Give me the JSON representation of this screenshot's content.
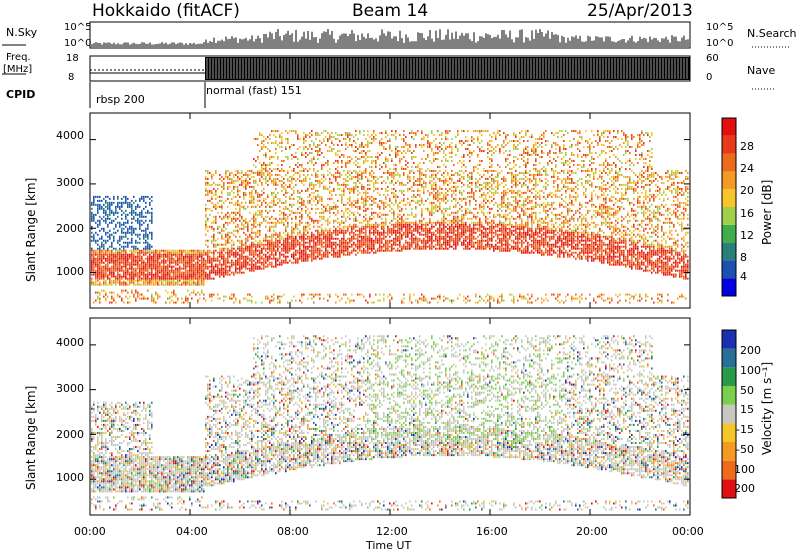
{
  "header": {
    "site": "Hokkaido (fitACF)",
    "beam": "Beam 14",
    "date": "25/Apr/2013"
  },
  "top_panel": {
    "left_label": "N.Sky",
    "right_label": "N.Search",
    "left_ticks": [
      "10^5",
      "10^0"
    ],
    "right_ticks": [
      "10^5",
      "10^0"
    ]
  },
  "freq_panel": {
    "left_label_1": "Freq.",
    "left_label_2": "[MHz]",
    "right_label": "Nave",
    "left_ticks": [
      "18",
      "8"
    ],
    "right_ticks": [
      "60",
      "0"
    ]
  },
  "cpid": {
    "label": "CPID",
    "segments": [
      {
        "name": "rbsp 200",
        "start_hour": 0.0
      },
      {
        "name": "normal (fast) 151",
        "start_hour": 4.6
      }
    ]
  },
  "chart_data": [
    {
      "type": "heatmap",
      "title": "",
      "xlabel": "Time UT",
      "ylabel": "Slant Range [km]",
      "xlim": [
        0,
        24
      ],
      "ylim": [
        200,
        4600
      ],
      "y_ticks": [
        "1000",
        "2000",
        "3000",
        "4000"
      ],
      "colorbar": {
        "label": "Power [dB]",
        "ticks": [
          "4",
          "8",
          "12",
          "16",
          "20",
          "24",
          "28"
        ],
        "range": [
          0,
          30
        ],
        "colors": [
          "#0000e0",
          "#1b4fb0",
          "#2a7f7a",
          "#3fae4a",
          "#9fd04a",
          "#f6c52a",
          "#f49a22",
          "#ee6a1d",
          "#e83a18",
          "#e01010"
        ]
      },
      "description_bands": [
        {
          "x_start": 0.0,
          "x_end": 4.6,
          "y_low": 800,
          "y_high": 1700,
          "value": 26
        },
        {
          "x_start": 4.6,
          "x_end": 24.0,
          "y_low": 800,
          "y_high": 2300,
          "value": 24
        },
        {
          "x_start": 6.5,
          "x_end": 22.5,
          "y_low": 2300,
          "y_high": 4000,
          "value": 22
        }
      ]
    },
    {
      "type": "heatmap",
      "title": "",
      "xlabel": "Time UT",
      "ylabel": "Slant Range [km]",
      "xlim": [
        0,
        24
      ],
      "ylim": [
        200,
        4600
      ],
      "y_ticks": [
        "1000",
        "2000",
        "3000",
        "4000"
      ],
      "x_ticks": [
        "00:00",
        "04:00",
        "08:00",
        "12:00",
        "16:00",
        "20:00",
        "00:00"
      ],
      "colorbar": {
        "label": "Velocity [m s⁻¹]",
        "ticks": [
          "200",
          "100",
          "50",
          "15",
          "-15",
          "-50",
          "-100",
          "-200"
        ],
        "colors": [
          "#1b2fb0",
          "#2a6f9a",
          "#2a9a4a",
          "#7ad04a",
          "#c8c8c0",
          "#f6c52a",
          "#f49a22",
          "#ee6a1d",
          "#e01010"
        ]
      }
    }
  ]
}
